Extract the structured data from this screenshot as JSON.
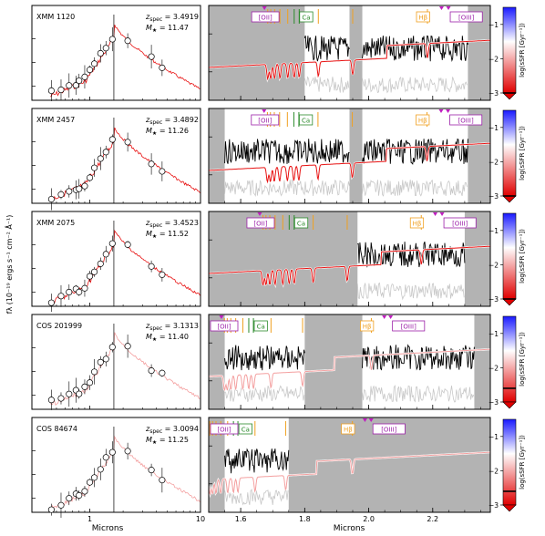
{
  "figure": {
    "ylabel": "fλ (10⁻¹⁹ ergs s⁻¹ cm⁻² Å⁻¹)",
    "left_xlabel": "Microns",
    "right_xlabel": "Microns",
    "colorbar_label": "log(sSFR [Gyr⁻¹])"
  },
  "colors": {
    "model_red": "#e81212",
    "model_pink": "#f4a0a0",
    "masked_gray": "#b3b3b3",
    "spectrum": "#000000",
    "error_gray": "#c8c8c8",
    "line_orange": "#f0a020",
    "line_green": "#2a8a2a",
    "label_purple": "#9b1fa8",
    "marker_magenta": "#c01ec0"
  },
  "chart_data": [
    {
      "type": "line",
      "name": "XMM 1120",
      "zspec": "3.4919",
      "mstar": "11.47",
      "model_color": "red",
      "unmasked_ranges": [
        [
          1.8,
          1.94
        ],
        [
          1.98,
          2.31
        ]
      ],
      "colorbar": {
        "ticks": [
          "−1",
          "−2",
          "−3"
        ],
        "marker": "−3"
      },
      "line_labels": [
        "[OII]",
        "Ca",
        "Hβ",
        "[OIII]"
      ]
    },
    {
      "type": "line",
      "name": "XMM 2457",
      "zspec": "3.4892",
      "mstar": "11.26",
      "model_color": "red",
      "unmasked_ranges": [
        [
          1.55,
          1.94
        ],
        [
          1.98,
          2.31
        ]
      ],
      "colorbar": {
        "ticks": [
          "−1",
          "−2",
          "−3"
        ],
        "marker": "−3"
      },
      "line_labels": [
        "[OII]",
        "Ca",
        "Hβ",
        "[OIII]"
      ]
    },
    {
      "type": "line",
      "name": "XMM 2075",
      "zspec": "3.4523",
      "mstar": "11.52",
      "model_color": "red",
      "unmasked_ranges": [
        [
          1.965,
          2.3
        ]
      ],
      "colorbar": {
        "ticks": [
          "−1",
          "−2",
          "−3"
        ],
        "marker": "−3"
      },
      "line_labels": [
        "[OII]",
        "Ca",
        "Hβ",
        "[OIII]"
      ]
    },
    {
      "type": "line",
      "name": "COS 201999",
      "zspec": "3.1313",
      "mstar": "11.40",
      "model_color": "pink",
      "unmasked_ranges": [
        [
          1.55,
          1.8
        ],
        [
          1.98,
          2.33
        ]
      ],
      "colorbar": {
        "ticks": [
          "−1",
          "−2",
          "−3"
        ],
        "marker": "−2.6"
      },
      "line_labels": [
        "[OII]",
        "Ca",
        "Hβ",
        "[OIII]"
      ]
    },
    {
      "type": "line",
      "name": "COS 84674",
      "zspec": "3.0094",
      "mstar": "11.25",
      "model_color": "pink",
      "unmasked_ranges": [
        [
          1.55,
          1.75
        ]
      ],
      "colorbar": {
        "ticks": [
          "−1",
          "−2",
          "−3"
        ],
        "marker": "−2.6"
      },
      "line_labels": [
        "[OII]",
        "Ca",
        "Hβ",
        "[OIII]"
      ]
    }
  ],
  "axes": {
    "left_xticks": [
      {
        "value": 1,
        "label": "1"
      },
      {
        "value": 10,
        "label": "10"
      }
    ],
    "left_xlim": [
      0.3,
      10
    ],
    "right_xticks": [
      {
        "value": 1.6,
        "label": "1.6"
      },
      {
        "value": 1.8,
        "label": "1.8"
      },
      {
        "value": 2.0,
        "label": "2.0"
      },
      {
        "value": 2.2,
        "label": "2.2"
      }
    ],
    "right_xlim": [
      1.5,
      2.38
    ]
  },
  "labels": {
    "zspec_prefix": "z",
    "zspec_sub": "spec",
    "mstar_prefix": "M",
    "mstar_sub": "★"
  }
}
